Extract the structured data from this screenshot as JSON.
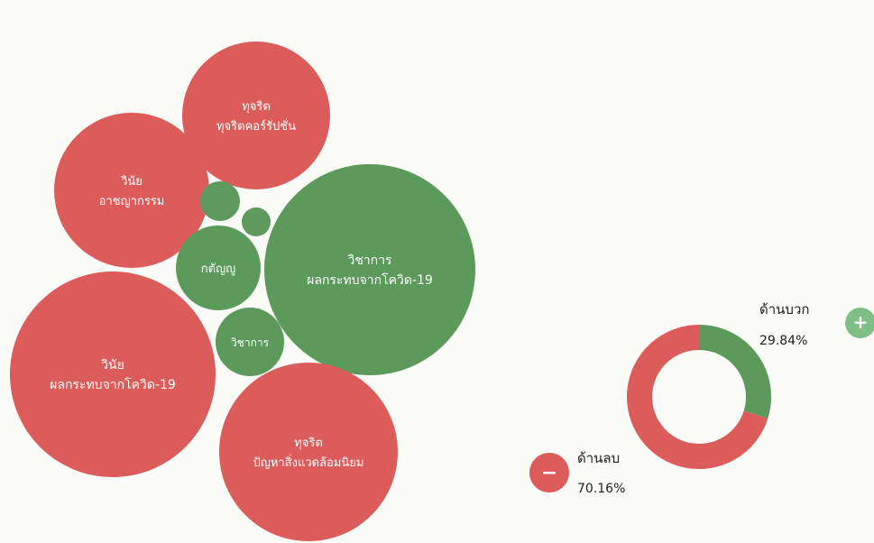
{
  "colors": {
    "negative": "#dc5b5b",
    "positive": "#5c9a5c",
    "small_green": "#5e9a5e",
    "background": "#fbfbf8"
  },
  "chart_data": [
    {
      "type": "bubble",
      "bubbles": [
        {
          "label_line1": "ทุจริต",
          "label_line2": "ทุจริตคอร์รัปชั่น",
          "sentiment": "negative"
        },
        {
          "label_line1": "วินัย",
          "label_line2": "อาชญากรรม",
          "sentiment": "negative"
        },
        {
          "label_line1": "วิชาการ",
          "label_line2": "ผลกระทบจากโควิด-19",
          "sentiment": "positive"
        },
        {
          "label_line1": "กตัญญู",
          "label_line2": "",
          "sentiment": "positive"
        },
        {
          "label_line1": "วิชาการ",
          "label_line2": "",
          "sentiment": "positive"
        },
        {
          "label_line1": "วินัย",
          "label_line2": "ผลกระทบจากโควิด-19",
          "sentiment": "negative"
        },
        {
          "label_line1": "ทุจริต",
          "label_line2": "ปัญหาสิ่งแวดล้อมนิยม",
          "sentiment": "negative"
        },
        {
          "label_line1": "",
          "label_line2": "",
          "sentiment": "positive"
        },
        {
          "label_line1": "",
          "label_line2": "",
          "sentiment": "positive"
        }
      ]
    },
    {
      "type": "pie",
      "slices": [
        {
          "label": "ด้านบวก",
          "value": 29.84,
          "value_text": "29.84%",
          "sentiment": "positive",
          "symbol": "+"
        },
        {
          "label": "ด้านลบ",
          "value": 70.16,
          "value_text": "70.16%",
          "sentiment": "negative",
          "symbol": "−"
        }
      ]
    }
  ]
}
